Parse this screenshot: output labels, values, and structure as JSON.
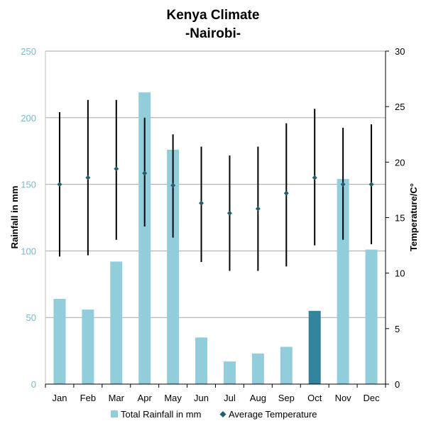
{
  "chart_data": {
    "type": "bar",
    "title": "Kenya Climate",
    "subtitle": "-Nairobi-",
    "categories": [
      "Jan",
      "Feb",
      "Mar",
      "Apr",
      "May",
      "Jun",
      "Jul",
      "Aug",
      "Sep",
      "Oct",
      "Nov",
      "Dec"
    ],
    "series": [
      {
        "name": "Total Rainfall in mm",
        "axis": "left",
        "type": "bar",
        "values": [
          64,
          56,
          92,
          219,
          176,
          35,
          17,
          23,
          28,
          55,
          154,
          101
        ]
      },
      {
        "name": "Average Temperature",
        "axis": "right",
        "type": "scatter",
        "values": [
          18.0,
          18.6,
          19.4,
          19.0,
          17.9,
          16.3,
          15.4,
          15.8,
          17.2,
          18.6,
          18.0,
          18.0
        ],
        "range_high": [
          24.5,
          25.6,
          25.6,
          24.0,
          22.5,
          21.4,
          20.6,
          21.4,
          23.5,
          24.8,
          23.1,
          23.4
        ],
        "range_low": [
          11.5,
          11.6,
          13.0,
          14.2,
          13.2,
          11.0,
          10.2,
          10.2,
          10.6,
          12.5,
          13.0,
          12.6
        ]
      }
    ],
    "ylabel": "Rainfall in mm",
    "y2label": "Temperature/C°",
    "ylim": [
      0,
      250
    ],
    "y2lim": [
      0,
      30
    ],
    "yticks": [
      "0",
      "50",
      "100",
      "150",
      "200",
      "250"
    ],
    "y2ticks": [
      "0",
      "5",
      "10",
      "15",
      "20",
      "25",
      "30"
    ],
    "grid": true,
    "legend": "bottom",
    "highlight_category": "Oct",
    "colors": {
      "bar": "#92cddc",
      "bar_highlight": "#31849b",
      "marker": "#215e6e",
      "range_line": "#000000",
      "grid": "#a6a6a6",
      "left_axis_text": "#7ab8cf"
    }
  }
}
